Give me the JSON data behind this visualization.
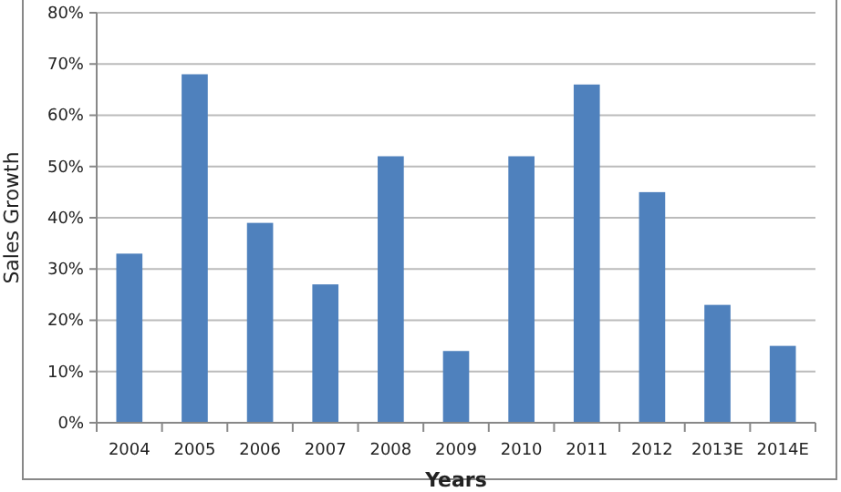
{
  "chart_data": {
    "type": "bar",
    "xlabel": "Years",
    "ylabel": "Sales Growth",
    "categories": [
      "2004",
      "2005",
      "2006",
      "2007",
      "2008",
      "2009",
      "2010",
      "2011",
      "2012",
      "2013E",
      "2014E"
    ],
    "values": [
      33,
      68,
      39,
      27,
      52,
      14,
      52,
      66,
      45,
      23,
      15
    ],
    "color": "#4f81bd",
    "ylim": [
      0,
      80
    ],
    "yticks": [
      {
        "value": 0,
        "label": "0%"
      },
      {
        "value": 10,
        "label": "10%"
      },
      {
        "value": 20,
        "label": "20%"
      },
      {
        "value": 30,
        "label": "30%"
      },
      {
        "value": 40,
        "label": "40%"
      },
      {
        "value": 50,
        "label": "50%"
      },
      {
        "value": 60,
        "label": "60%"
      },
      {
        "value": 70,
        "label": "70%"
      },
      {
        "value": 80,
        "label": "80%"
      }
    ],
    "grid": "y"
  }
}
